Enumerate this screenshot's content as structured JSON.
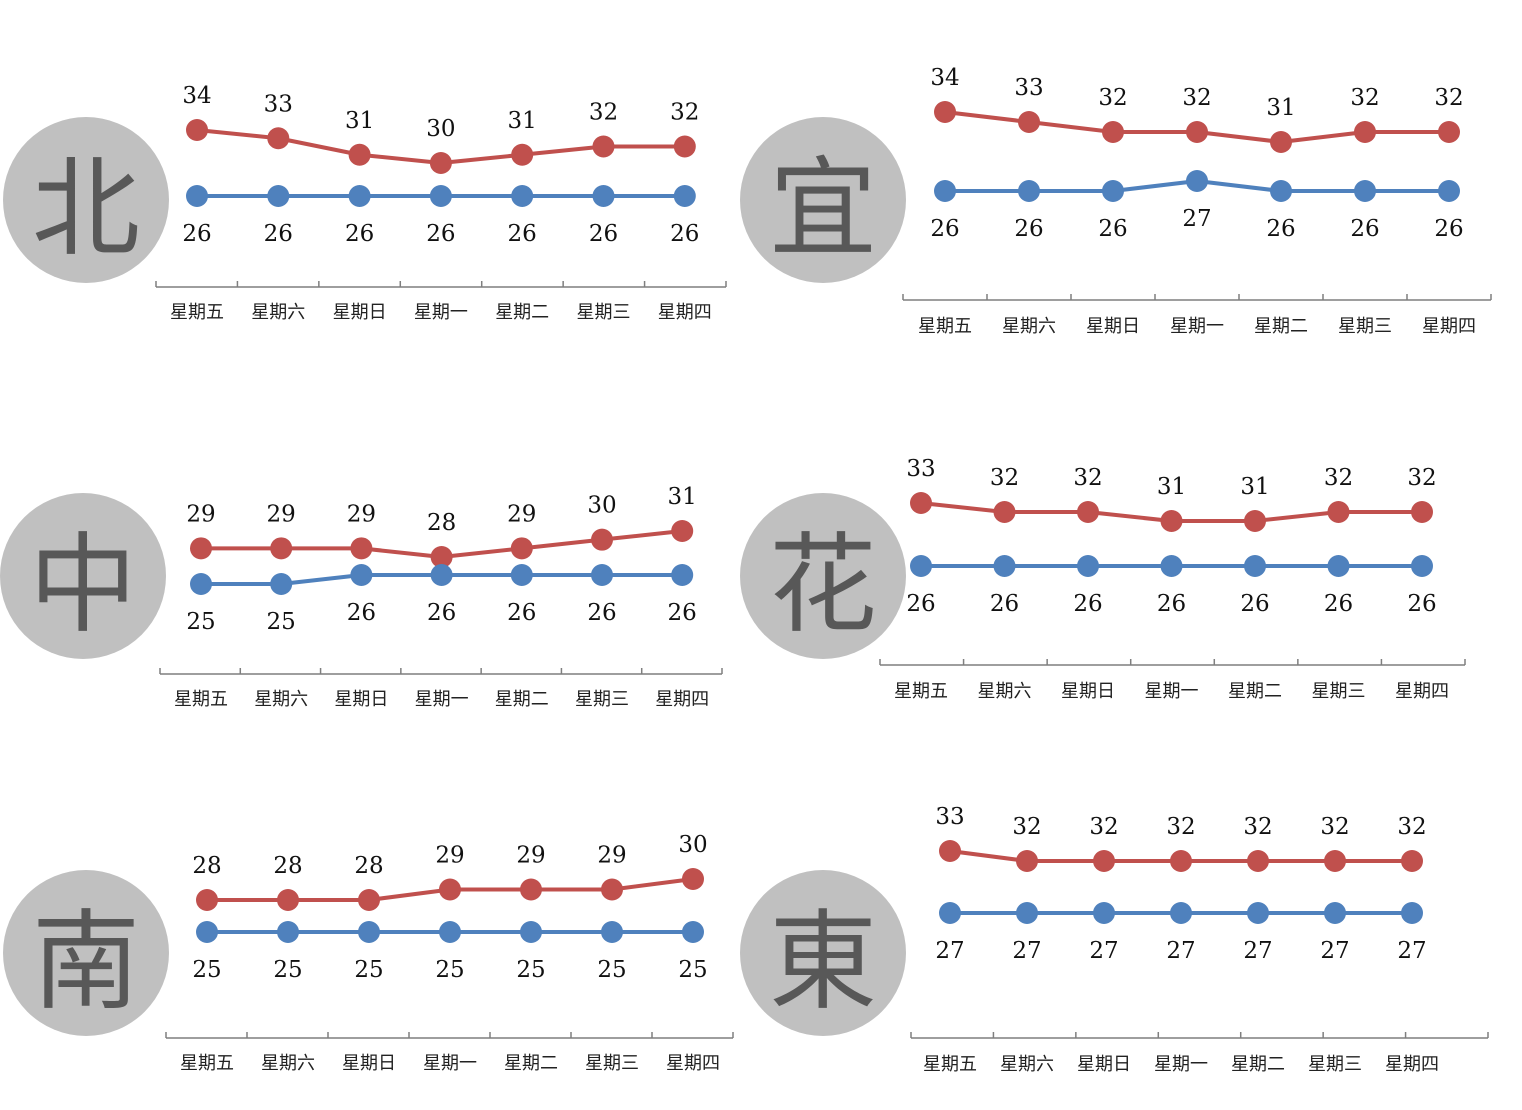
{
  "colors": {
    "high": "#c0504d",
    "low": "#4f81bd",
    "axis": "#7f7f7f",
    "badge": "#c0c0c0"
  },
  "chart_data": [
    {
      "type": "line",
      "region_label": "北",
      "categories": [
        "星期五",
        "星期六",
        "星期日",
        "星期一",
        "星期二",
        "星期三",
        "星期四"
      ],
      "series": [
        {
          "values": [
            34,
            33,
            31,
            30,
            31,
            32,
            32
          ]
        },
        {
          "values": [
            26,
            26,
            26,
            26,
            26,
            26,
            26
          ]
        }
      ]
    },
    {
      "type": "line",
      "region_label": "宜",
      "categories": [
        "星期五",
        "星期六",
        "星期日",
        "星期一",
        "星期二",
        "星期三",
        "星期四"
      ],
      "series": [
        {
          "values": [
            34,
            33,
            32,
            32,
            31,
            32,
            32
          ]
        },
        {
          "values": [
            26,
            26,
            26,
            27,
            26,
            26,
            26
          ]
        }
      ]
    },
    {
      "type": "line",
      "region_label": "中",
      "categories": [
        "星期五",
        "星期六",
        "星期日",
        "星期一",
        "星期二",
        "星期三",
        "星期四"
      ],
      "series": [
        {
          "values": [
            29,
            29,
            29,
            28,
            29,
            30,
            31
          ]
        },
        {
          "values": [
            25,
            25,
            26,
            26,
            26,
            26,
            26
          ]
        }
      ]
    },
    {
      "type": "line",
      "region_label": "花",
      "categories": [
        "星期五",
        "星期六",
        "星期日",
        "星期一",
        "星期二",
        "星期三",
        "星期四"
      ],
      "series": [
        {
          "values": [
            33,
            32,
            32,
            31,
            31,
            32,
            32
          ]
        },
        {
          "values": [
            26,
            26,
            26,
            26,
            26,
            26,
            26
          ]
        }
      ]
    },
    {
      "type": "line",
      "region_label": "南",
      "categories": [
        "星期五",
        "星期六",
        "星期日",
        "星期一",
        "星期二",
        "星期三",
        "星期四"
      ],
      "series": [
        {
          "values": [
            28,
            28,
            28,
            29,
            29,
            29,
            30
          ]
        },
        {
          "values": [
            25,
            25,
            25,
            25,
            25,
            25,
            25
          ]
        }
      ]
    },
    {
      "type": "line",
      "region_label": "東",
      "categories": [
        "星期五",
        "星期六",
        "星期日",
        "星期一",
        "星期二",
        "星期三",
        "星期四"
      ],
      "series": [
        {
          "values": [
            33,
            32,
            32,
            32,
            32,
            32,
            32
          ]
        },
        {
          "values": [
            27,
            27,
            27,
            27,
            27,
            27,
            27
          ]
        }
      ]
    }
  ]
}
